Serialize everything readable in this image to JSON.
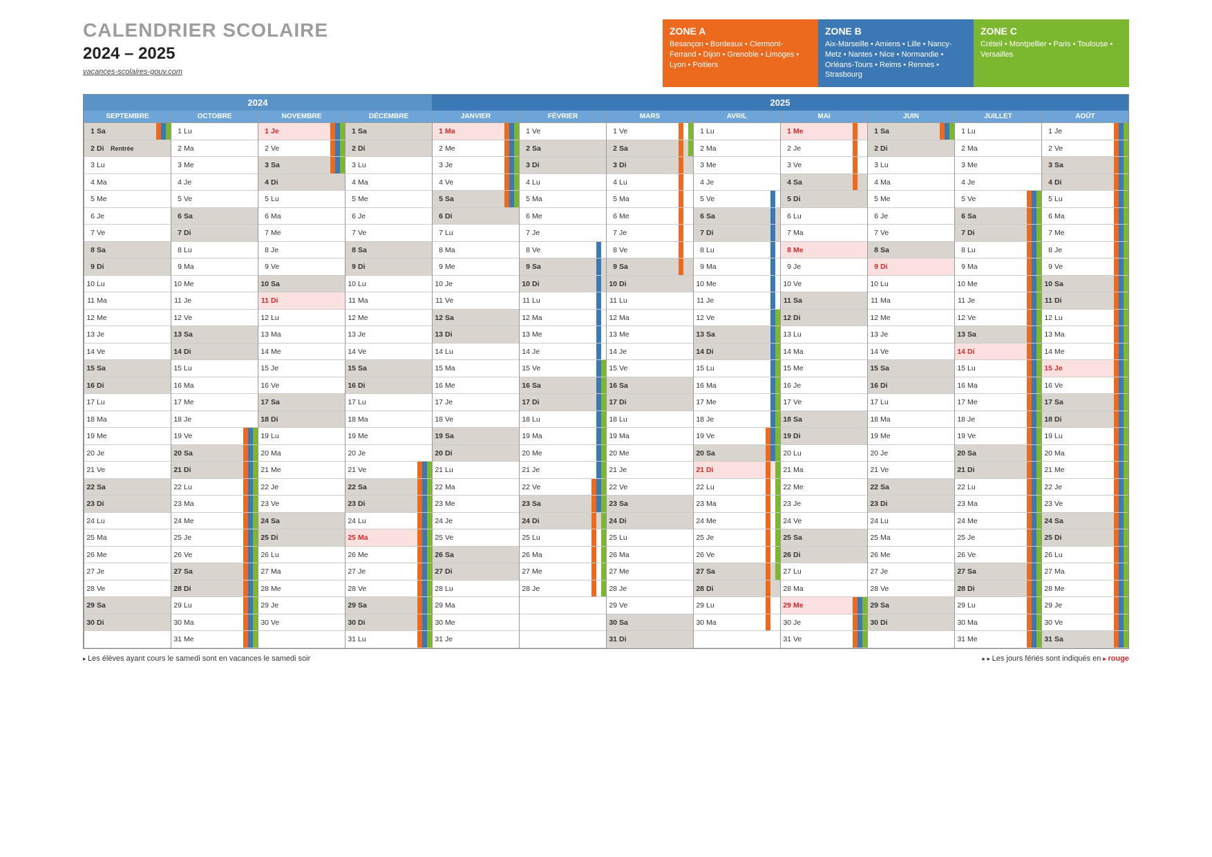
{
  "title": "CALENDRIER SCOLAIRE",
  "years": "2024 – 2025",
  "url": "vacances-scolaires-gouv.com",
  "colors": {
    "zoneA": "#ec6a1e",
    "zoneB": "#3c78b4",
    "zoneC": "#7cb82f",
    "weekend": "#d9d4ce",
    "holiday_bg": "#fbe0e0",
    "holiday_fg": "#d12a2a",
    "year2024": "#5a93c8",
    "year2025": "#3c78b4",
    "month_hdr": "#6ea5d8"
  },
  "zones": [
    {
      "key": "A",
      "title": "ZONE A",
      "cities": "Besançon • Bordeaux • Clermont-Ferrand • Dijon • Grenoble • Limoges • Lyon • Poitiers",
      "color": "#ec6a1e"
    },
    {
      "key": "B",
      "title": "ZONE B",
      "cities": "Aix-Marseille • Amiens • Lille • Nancy-Metz • Nantes • Nice • Normandie • Orléans-Tours • Reims • Rennes • Strasbourg",
      "color": "#3c78b4"
    },
    {
      "key": "C",
      "title": "ZONE C",
      "cities": "Créteil • Montpellier • Paris • Toulouse • Versailles",
      "color": "#7cb82f"
    }
  ],
  "year_headers": [
    {
      "label": "2024",
      "span": 4,
      "color": "#5a93c8"
    },
    {
      "label": "2025",
      "span": 8,
      "color": "#3c78b4"
    }
  ],
  "day_names": [
    "Lu",
    "Ma",
    "Me",
    "Je",
    "Ve",
    "Sa",
    "Di"
  ],
  "footer_left": "Les élèves ayant cours le samedi sont en vacances le samedi soir",
  "footer_right_pre": "Les jours fériés sont indiqués en ",
  "footer_right_red": "rouge",
  "months": [
    {
      "name": "SEPTEMBRE",
      "first_dow": 6,
      "ndays": 30,
      "labels": {
        "2": "Rentrée"
      },
      "holidays": [],
      "bars": {
        "1": [
          "A",
          "B",
          "C"
        ]
      }
    },
    {
      "name": "OCTOBRE",
      "first_dow": 1,
      "ndays": 31,
      "holidays": [],
      "bars": {
        "19": [
          "A",
          "B",
          "C"
        ],
        "20": [
          "A",
          "B",
          "C"
        ],
        "21": [
          "A",
          "B",
          "C"
        ],
        "22": [
          "A",
          "B",
          "C"
        ],
        "23": [
          "A",
          "B",
          "C"
        ],
        "24": [
          "A",
          "B",
          "C"
        ],
        "25": [
          "A",
          "B",
          "C"
        ],
        "26": [
          "A",
          "B",
          "C"
        ],
        "27": [
          "A",
          "B",
          "C"
        ],
        "28": [
          "A",
          "B",
          "C"
        ],
        "29": [
          "A",
          "B",
          "C"
        ],
        "30": [
          "A",
          "B",
          "C"
        ],
        "31": [
          "A",
          "B",
          "C"
        ]
      }
    },
    {
      "name": "NOVEMBRE",
      "first_dow": 4,
      "ndays": 30,
      "holidays": [
        1,
        11
      ],
      "bars": {
        "1": [
          "A",
          "B",
          "C"
        ],
        "2": [
          "A",
          "B",
          "C"
        ],
        "3": [
          "A",
          "B",
          "C"
        ]
      }
    },
    {
      "name": "DÉCEMBRE",
      "first_dow": 6,
      "ndays": 31,
      "holidays": [
        25
      ],
      "bars": {
        "21": [
          "A",
          "B",
          "C"
        ],
        "22": [
          "A",
          "B",
          "C"
        ],
        "23": [
          "A",
          "B",
          "C"
        ],
        "24": [
          "A",
          "B",
          "C"
        ],
        "25": [
          "A",
          "B",
          "C"
        ],
        "26": [
          "A",
          "B",
          "C"
        ],
        "27": [
          "A",
          "B",
          "C"
        ],
        "28": [
          "A",
          "B",
          "C"
        ],
        "29": [
          "A",
          "B",
          "C"
        ],
        "30": [
          "A",
          "B",
          "C"
        ],
        "31": [
          "A",
          "B",
          "C"
        ]
      }
    },
    {
      "name": "JANVIER",
      "first_dow": 2,
      "ndays": 31,
      "holidays": [
        1
      ],
      "bars": {
        "1": [
          "A",
          "B",
          "C"
        ],
        "2": [
          "A",
          "B",
          "C"
        ],
        "3": [
          "A",
          "B",
          "C"
        ],
        "4": [
          "A",
          "B",
          "C"
        ],
        "5": [
          "A",
          "B",
          "C"
        ]
      }
    },
    {
      "name": "FÉVRIER",
      "first_dow": 5,
      "ndays": 28,
      "holidays": [],
      "bars": {
        "8": [
          "B"
        ],
        "9": [
          "B"
        ],
        "10": [
          "B"
        ],
        "11": [
          "B"
        ],
        "12": [
          "B"
        ],
        "13": [
          "B"
        ],
        "14": [
          "B"
        ],
        "15": [
          "B",
          "C"
        ],
        "16": [
          "B",
          "C"
        ],
        "17": [
          "B",
          "C"
        ],
        "18": [
          "B",
          "C"
        ],
        "19": [
          "B",
          "C"
        ],
        "20": [
          "B",
          "C"
        ],
        "21": [
          "B",
          "C"
        ],
        "22": [
          "A",
          "B",
          "C"
        ],
        "23": [
          "A",
          "B",
          "C"
        ],
        "24": [
          "A",
          "C"
        ],
        "25": [
          "A",
          "C"
        ],
        "26": [
          "A",
          "C"
        ],
        "27": [
          "A",
          "C"
        ],
        "28": [
          "A",
          "C"
        ]
      }
    },
    {
      "name": "MARS",
      "first_dow": 5,
      "ndays": 31,
      "holidays": [],
      "bars": {
        "1": [
          "A",
          "C"
        ],
        "2": [
          "A",
          "C"
        ],
        "3": [
          "A"
        ],
        "4": [
          "A"
        ],
        "5": [
          "A"
        ],
        "6": [
          "A"
        ],
        "7": [
          "A"
        ],
        "8": [
          "A"
        ],
        "9": [
          "A"
        ]
      }
    },
    {
      "name": "AVRIL",
      "first_dow": 1,
      "ndays": 30,
      "holidays": [
        21
      ],
      "bars": {
        "5": [
          "B"
        ],
        "6": [
          "B"
        ],
        "7": [
          "B"
        ],
        "8": [
          "B"
        ],
        "9": [
          "B"
        ],
        "10": [
          "B"
        ],
        "11": [
          "B"
        ],
        "12": [
          "B",
          "C"
        ],
        "13": [
          "B",
          "C"
        ],
        "14": [
          "B",
          "C"
        ],
        "15": [
          "B",
          "C"
        ],
        "16": [
          "B",
          "C"
        ],
        "17": [
          "B",
          "C"
        ],
        "18": [
          "B",
          "C"
        ],
        "19": [
          "A",
          "B",
          "C"
        ],
        "20": [
          "A",
          "B",
          "C"
        ],
        "21": [
          "A",
          "C"
        ],
        "22": [
          "A",
          "C"
        ],
        "23": [
          "A",
          "C"
        ],
        "24": [
          "A",
          "C"
        ],
        "25": [
          "A",
          "C"
        ],
        "26": [
          "A",
          "C"
        ],
        "27": [
          "A",
          "C"
        ],
        "28": [
          "A"
        ],
        "29": [
          "A"
        ],
        "30": [
          "A"
        ]
      }
    },
    {
      "name": "MAI",
      "first_dow": 3,
      "ndays": 31,
      "holidays": [
        1,
        8,
        29
      ],
      "bars": {
        "1": [
          "A"
        ],
        "2": [
          "A"
        ],
        "3": [
          "A"
        ],
        "4": [
          "A"
        ],
        "29": [
          "A",
          "B",
          "C"
        ],
        "30": [
          "A",
          "B",
          "C"
        ],
        "31": [
          "A",
          "B",
          "C"
        ]
      }
    },
    {
      "name": "JUIN",
      "first_dow": 6,
      "ndays": 30,
      "holidays": [
        9
      ],
      "bars": {
        "1": [
          "A",
          "B",
          "C"
        ]
      }
    },
    {
      "name": "JUILLET",
      "first_dow": 1,
      "ndays": 31,
      "holidays": [
        14
      ],
      "bars": {
        "5": [
          "A",
          "B",
          "C"
        ],
        "6": [
          "A",
          "B",
          "C"
        ],
        "7": [
          "A",
          "B",
          "C"
        ],
        "8": [
          "A",
          "B",
          "C"
        ],
        "9": [
          "A",
          "B",
          "C"
        ],
        "10": [
          "A",
          "B",
          "C"
        ],
        "11": [
          "A",
          "B",
          "C"
        ],
        "12": [
          "A",
          "B",
          "C"
        ],
        "13": [
          "A",
          "B",
          "C"
        ],
        "14": [
          "A",
          "B",
          "C"
        ],
        "15": [
          "A",
          "B",
          "C"
        ],
        "16": [
          "A",
          "B",
          "C"
        ],
        "17": [
          "A",
          "B",
          "C"
        ],
        "18": [
          "A",
          "B",
          "C"
        ],
        "19": [
          "A",
          "B",
          "C"
        ],
        "20": [
          "A",
          "B",
          "C"
        ],
        "21": [
          "A",
          "B",
          "C"
        ],
        "22": [
          "A",
          "B",
          "C"
        ],
        "23": [
          "A",
          "B",
          "C"
        ],
        "24": [
          "A",
          "B",
          "C"
        ],
        "25": [
          "A",
          "B",
          "C"
        ],
        "26": [
          "A",
          "B",
          "C"
        ],
        "27": [
          "A",
          "B",
          "C"
        ],
        "28": [
          "A",
          "B",
          "C"
        ],
        "29": [
          "A",
          "B",
          "C"
        ],
        "30": [
          "A",
          "B",
          "C"
        ],
        "31": [
          "A",
          "B",
          "C"
        ]
      }
    },
    {
      "name": "AOÛT",
      "first_dow": 4,
      "ndays": 31,
      "holidays": [
        15
      ],
      "bars": {
        "1": [
          "A",
          "B",
          "C"
        ],
        "2": [
          "A",
          "B",
          "C"
        ],
        "3": [
          "A",
          "B",
          "C"
        ],
        "4": [
          "A",
          "B",
          "C"
        ],
        "5": [
          "A",
          "B",
          "C"
        ],
        "6": [
          "A",
          "B",
          "C"
        ],
        "7": [
          "A",
          "B",
          "C"
        ],
        "8": [
          "A",
          "B",
          "C"
        ],
        "9": [
          "A",
          "B",
          "C"
        ],
        "10": [
          "A",
          "B",
          "C"
        ],
        "11": [
          "A",
          "B",
          "C"
        ],
        "12": [
          "A",
          "B",
          "C"
        ],
        "13": [
          "A",
          "B",
          "C"
        ],
        "14": [
          "A",
          "B",
          "C"
        ],
        "15": [
          "A",
          "B",
          "C"
        ],
        "16": [
          "A",
          "B",
          "C"
        ],
        "17": [
          "A",
          "B",
          "C"
        ],
        "18": [
          "A",
          "B",
          "C"
        ],
        "19": [
          "A",
          "B",
          "C"
        ],
        "20": [
          "A",
          "B",
          "C"
        ],
        "21": [
          "A",
          "B",
          "C"
        ],
        "22": [
          "A",
          "B",
          "C"
        ],
        "23": [
          "A",
          "B",
          "C"
        ],
        "24": [
          "A",
          "B",
          "C"
        ],
        "25": [
          "A",
          "B",
          "C"
        ],
        "26": [
          "A",
          "B",
          "C"
        ],
        "27": [
          "A",
          "B",
          "C"
        ],
        "28": [
          "A",
          "B",
          "C"
        ],
        "29": [
          "A",
          "B",
          "C"
        ],
        "30": [
          "A",
          "B",
          "C"
        ],
        "31": [
          "A",
          "B",
          "C"
        ]
      }
    }
  ]
}
